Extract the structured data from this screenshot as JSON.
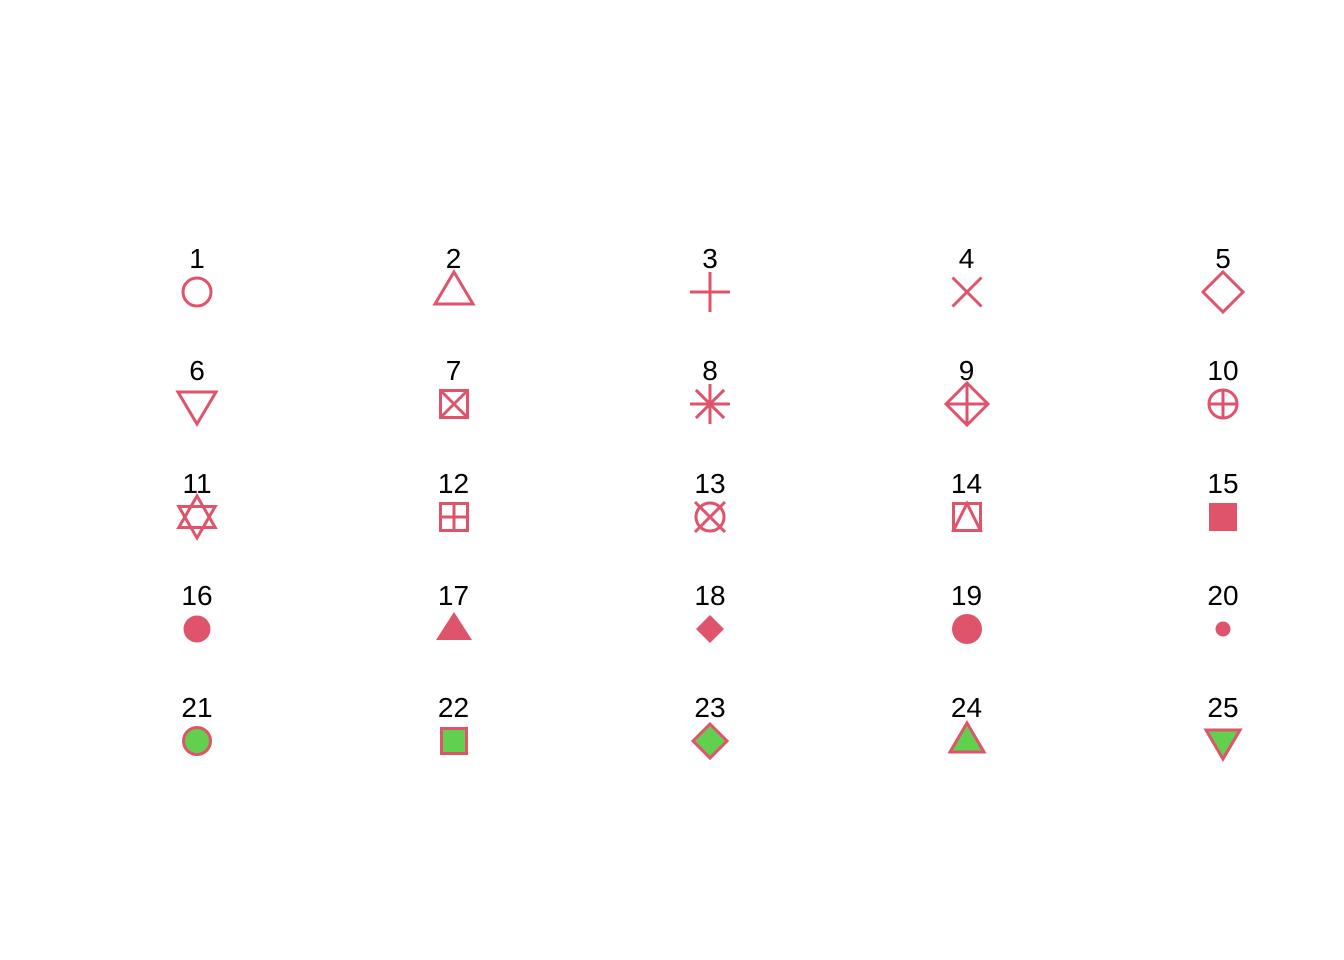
{
  "figure": {
    "background": "#FFFFFF",
    "symbol_color": "#DF536B",
    "fill_color": "#61D04F",
    "label_color": "#000000"
  },
  "chart_data": {
    "type": "scatter",
    "title": "",
    "xlabel": "",
    "ylabel": "",
    "grid": false,
    "legend_position": "none",
    "description": "Reference grid of R plotting characters (pch) 1 through 25, arranged in a 5x5 grid with the pch number labeled above each symbol. Symbols 1-14 are open red outlines, 15-20 are solid red fills, 21-25 are green-filled shapes with red borders.",
    "points": [
      {
        "label": "1",
        "pch": 1,
        "symbol": "open-circle",
        "col": 1,
        "row": 1
      },
      {
        "label": "2",
        "pch": 2,
        "symbol": "open-triangle-up",
        "col": 2,
        "row": 1
      },
      {
        "label": "3",
        "pch": 3,
        "symbol": "plus",
        "col": 3,
        "row": 1
      },
      {
        "label": "4",
        "pch": 4,
        "symbol": "cross",
        "col": 4,
        "row": 1
      },
      {
        "label": "5",
        "pch": 5,
        "symbol": "open-diamond",
        "col": 5,
        "row": 1
      },
      {
        "label": "6",
        "pch": 6,
        "symbol": "open-triangle-down",
        "col": 1,
        "row": 2
      },
      {
        "label": "7",
        "pch": 7,
        "symbol": "square-cross",
        "col": 2,
        "row": 2
      },
      {
        "label": "8",
        "pch": 8,
        "symbol": "asterisk",
        "col": 3,
        "row": 2
      },
      {
        "label": "9",
        "pch": 9,
        "symbol": "diamond-plus",
        "col": 4,
        "row": 2
      },
      {
        "label": "10",
        "pch": 10,
        "symbol": "circle-plus",
        "col": 5,
        "row": 2
      },
      {
        "label": "11",
        "pch": 11,
        "symbol": "star-of-david",
        "col": 1,
        "row": 3
      },
      {
        "label": "12",
        "pch": 12,
        "symbol": "square-plus",
        "col": 2,
        "row": 3
      },
      {
        "label": "13",
        "pch": 13,
        "symbol": "circle-cross",
        "col": 3,
        "row": 3
      },
      {
        "label": "14",
        "pch": 14,
        "symbol": "square-triangle",
        "col": 4,
        "row": 3
      },
      {
        "label": "15",
        "pch": 15,
        "symbol": "filled-square",
        "col": 5,
        "row": 3
      },
      {
        "label": "16",
        "pch": 16,
        "symbol": "filled-circle",
        "col": 1,
        "row": 4
      },
      {
        "label": "17",
        "pch": 17,
        "symbol": "filled-triangle-up",
        "col": 2,
        "row": 4
      },
      {
        "label": "18",
        "pch": 18,
        "symbol": "filled-diamond",
        "col": 3,
        "row": 4
      },
      {
        "label": "19",
        "pch": 19,
        "symbol": "solid-circle",
        "col": 4,
        "row": 4
      },
      {
        "label": "20",
        "pch": 20,
        "symbol": "small-solid-circle",
        "col": 5,
        "row": 4
      },
      {
        "label": "21",
        "pch": 21,
        "symbol": "filled-circle-outlined",
        "col": 1,
        "row": 5
      },
      {
        "label": "22",
        "pch": 22,
        "symbol": "filled-square-outlined",
        "col": 2,
        "row": 5
      },
      {
        "label": "23",
        "pch": 23,
        "symbol": "filled-diamond-outlined",
        "col": 3,
        "row": 5
      },
      {
        "label": "24",
        "pch": 24,
        "symbol": "filled-triangle-up-outlined",
        "col": 4,
        "row": 5
      },
      {
        "label": "25",
        "pch": 25,
        "symbol": "filled-triangle-down-outlined",
        "col": 5,
        "row": 5
      }
    ]
  }
}
